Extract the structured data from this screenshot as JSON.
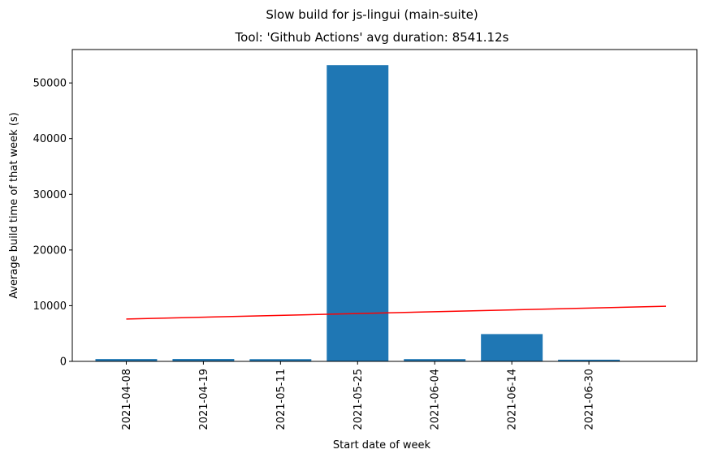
{
  "chart_data": {
    "type": "bar",
    "suptitle": "Slow build for js-lingui (main-suite)",
    "title": "Tool: 'Github Actions' avg duration: 8541.12s",
    "xlabel": "Start date of week",
    "ylabel": "Average build time of that week (s)",
    "categories": [
      "2021-04-08",
      "2021-04-19",
      "2021-05-11",
      "2021-05-25",
      "2021-06-04",
      "2021-06-14",
      "2021-06-30"
    ],
    "values": [
      420,
      430,
      400,
      53200,
      410,
      4900,
      300
    ],
    "ylim": [
      0,
      56000
    ],
    "yticks": [
      0,
      10000,
      20000,
      30000,
      40000,
      50000
    ],
    "bar_color": "#1f77b4",
    "trend_line": {
      "color": "#ff0000",
      "start": [
        0,
        7600
      ],
      "end": [
        7,
        9900
      ]
    },
    "grid": false,
    "legend": "none"
  }
}
